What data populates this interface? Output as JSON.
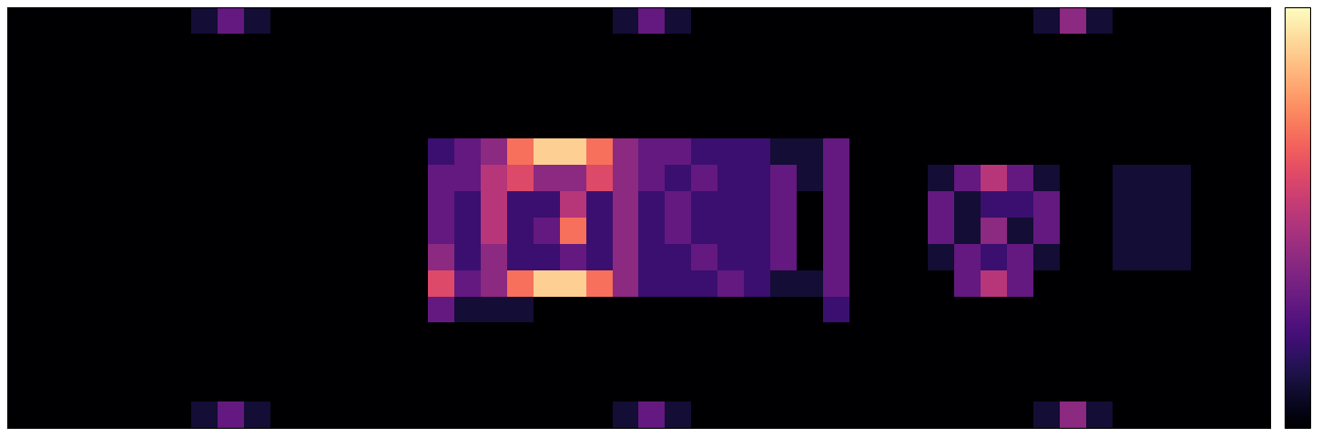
{
  "chart_data": {
    "type": "heatmap",
    "color": "magma",
    "tick_labels": false,
    "cells": [
      [
        0,
        0,
        0,
        0,
        0,
        0,
        0,
        1,
        3,
        1,
        0,
        0,
        0,
        0,
        0,
        0,
        0,
        0,
        0,
        0,
        0,
        0,
        0,
        1,
        3,
        1,
        0,
        0,
        0,
        0,
        0,
        0,
        0,
        0,
        0,
        0,
        0,
        0,
        0,
        1,
        4,
        1,
        0,
        0,
        0,
        0,
        0,
        0
      ],
      [
        0,
        0,
        0,
        0,
        0,
        0,
        0,
        0,
        0,
        0,
        0,
        0,
        0,
        0,
        0,
        0,
        0,
        0,
        0,
        0,
        0,
        0,
        0,
        0,
        0,
        0,
        0,
        0,
        0,
        0,
        0,
        0,
        0,
        0,
        0,
        0,
        0,
        0,
        0,
        0,
        0,
        0,
        0,
        0,
        0,
        0,
        0,
        0
      ],
      [
        0,
        0,
        0,
        0,
        0,
        0,
        0,
        0,
        0,
        0,
        0,
        0,
        0,
        0,
        0,
        0,
        0,
        0,
        0,
        0,
        0,
        0,
        0,
        0,
        0,
        0,
        0,
        0,
        0,
        0,
        0,
        0,
        0,
        0,
        0,
        0,
        0,
        0,
        0,
        0,
        0,
        0,
        0,
        0,
        0,
        0,
        0,
        0
      ],
      [
        0,
        0,
        0,
        0,
        0,
        0,
        0,
        0,
        0,
        0,
        0,
        0,
        0,
        0,
        0,
        0,
        0,
        0,
        0,
        0,
        0,
        0,
        0,
        0,
        0,
        0,
        0,
        0,
        0,
        0,
        0,
        0,
        0,
        0,
        0,
        0,
        0,
        0,
        0,
        0,
        0,
        0,
        0,
        0,
        0,
        0,
        0,
        0
      ],
      [
        0,
        0,
        0,
        0,
        0,
        0,
        0,
        0,
        0,
        0,
        0,
        0,
        0,
        0,
        0,
        0,
        0,
        0,
        0,
        0,
        0,
        0,
        0,
        0,
        0,
        0,
        0,
        0,
        0,
        0,
        0,
        0,
        0,
        0,
        0,
        0,
        0,
        0,
        0,
        0,
        0,
        0,
        0,
        0,
        0,
        0,
        0,
        0
      ],
      [
        0,
        0,
        0,
        0,
        0,
        0,
        0,
        0,
        0,
        0,
        0,
        0,
        0,
        0,
        0,
        0,
        2,
        3,
        4,
        7,
        9,
        9,
        7,
        4,
        3,
        3,
        2,
        2,
        2,
        1,
        1,
        3,
        0,
        0,
        0,
        0,
        0,
        0,
        0,
        0,
        0,
        0,
        0,
        0,
        0,
        0,
        0,
        0
      ],
      [
        0,
        0,
        0,
        0,
        0,
        0,
        0,
        0,
        0,
        0,
        0,
        0,
        0,
        0,
        0,
        0,
        3,
        3,
        5,
        6,
        4,
        4,
        6,
        4,
        3,
        2,
        3,
        2,
        2,
        3,
        1,
        3,
        0,
        0,
        0,
        1,
        3,
        5,
        3,
        1,
        0,
        0,
        1,
        1,
        1,
        0,
        0,
        0
      ],
      [
        0,
        0,
        0,
        0,
        0,
        0,
        0,
        0,
        0,
        0,
        0,
        0,
        0,
        0,
        0,
        0,
        3,
        2,
        5,
        2,
        2,
        5,
        2,
        4,
        2,
        3,
        2,
        2,
        2,
        3,
        0,
        3,
        0,
        0,
        0,
        3,
        1,
        2,
        2,
        3,
        0,
        0,
        1,
        1,
        1,
        0,
        0,
        0
      ],
      [
        0,
        0,
        0,
        0,
        0,
        0,
        0,
        0,
        0,
        0,
        0,
        0,
        0,
        0,
        0,
        0,
        3,
        2,
        5,
        2,
        3,
        7,
        2,
        4,
        2,
        3,
        2,
        2,
        2,
        3,
        0,
        3,
        0,
        0,
        0,
        3,
        1,
        4,
        1,
        3,
        0,
        0,
        1,
        1,
        1,
        0,
        0,
        0
      ],
      [
        0,
        0,
        0,
        0,
        0,
        0,
        0,
        0,
        0,
        0,
        0,
        0,
        0,
        0,
        0,
        0,
        4,
        2,
        4,
        2,
        2,
        3,
        2,
        4,
        2,
        2,
        3,
        2,
        2,
        3,
        0,
        3,
        0,
        0,
        0,
        1,
        3,
        2,
        3,
        1,
        0,
        0,
        1,
        1,
        1,
        0,
        0,
        0
      ],
      [
        0,
        0,
        0,
        0,
        0,
        0,
        0,
        0,
        0,
        0,
        0,
        0,
        0,
        0,
        0,
        0,
        6,
        3,
        4,
        7,
        9,
        9,
        7,
        4,
        2,
        2,
        2,
        3,
        2,
        1,
        1,
        3,
        0,
        0,
        0,
        0,
        3,
        5,
        3,
        0,
        0,
        0,
        0,
        0,
        0,
        0,
        0,
        0
      ],
      [
        0,
        0,
        0,
        0,
        0,
        0,
        0,
        0,
        0,
        0,
        0,
        0,
        0,
        0,
        0,
        0,
        3,
        1,
        1,
        1,
        0,
        0,
        0,
        0,
        0,
        0,
        0,
        0,
        0,
        0,
        0,
        2,
        0,
        0,
        0,
        0,
        0,
        0,
        0,
        0,
        0,
        0,
        0,
        0,
        0,
        0,
        0,
        0
      ],
      [
        0,
        0,
        0,
        0,
        0,
        0,
        0,
        0,
        0,
        0,
        0,
        0,
        0,
        0,
        0,
        0,
        0,
        0,
        0,
        0,
        0,
        0,
        0,
        0,
        0,
        0,
        0,
        0,
        0,
        0,
        0,
        0,
        0,
        0,
        0,
        0,
        0,
        0,
        0,
        0,
        0,
        0,
        0,
        0,
        0,
        0,
        0,
        0
      ],
      [
        0,
        0,
        0,
        0,
        0,
        0,
        0,
        0,
        0,
        0,
        0,
        0,
        0,
        0,
        0,
        0,
        0,
        0,
        0,
        0,
        0,
        0,
        0,
        0,
        0,
        0,
        0,
        0,
        0,
        0,
        0,
        0,
        0,
        0,
        0,
        0,
        0,
        0,
        0,
        0,
        0,
        0,
        0,
        0,
        0,
        0,
        0,
        0
      ],
      [
        0,
        0,
        0,
        0,
        0,
        0,
        0,
        0,
        0,
        0,
        0,
        0,
        0,
        0,
        0,
        0,
        0,
        0,
        0,
        0,
        0,
        0,
        0,
        0,
        0,
        0,
        0,
        0,
        0,
        0,
        0,
        0,
        0,
        0,
        0,
        0,
        0,
        0,
        0,
        0,
        0,
        0,
        0,
        0,
        0,
        0,
        0,
        0
      ],
      [
        0,
        0,
        0,
        0,
        0,
        0,
        0,
        1,
        3,
        1,
        0,
        0,
        0,
        0,
        0,
        0,
        0,
        0,
        0,
        0,
        0,
        0,
        0,
        1,
        3,
        1,
        0,
        0,
        0,
        0,
        0,
        0,
        0,
        0,
        0,
        0,
        0,
        0,
        0,
        1,
        4,
        1,
        0,
        0,
        0,
        0,
        0,
        0
      ]
    ],
    "colorbar": {
      "range": [
        0,
        10
      ],
      "ticks": []
    }
  }
}
